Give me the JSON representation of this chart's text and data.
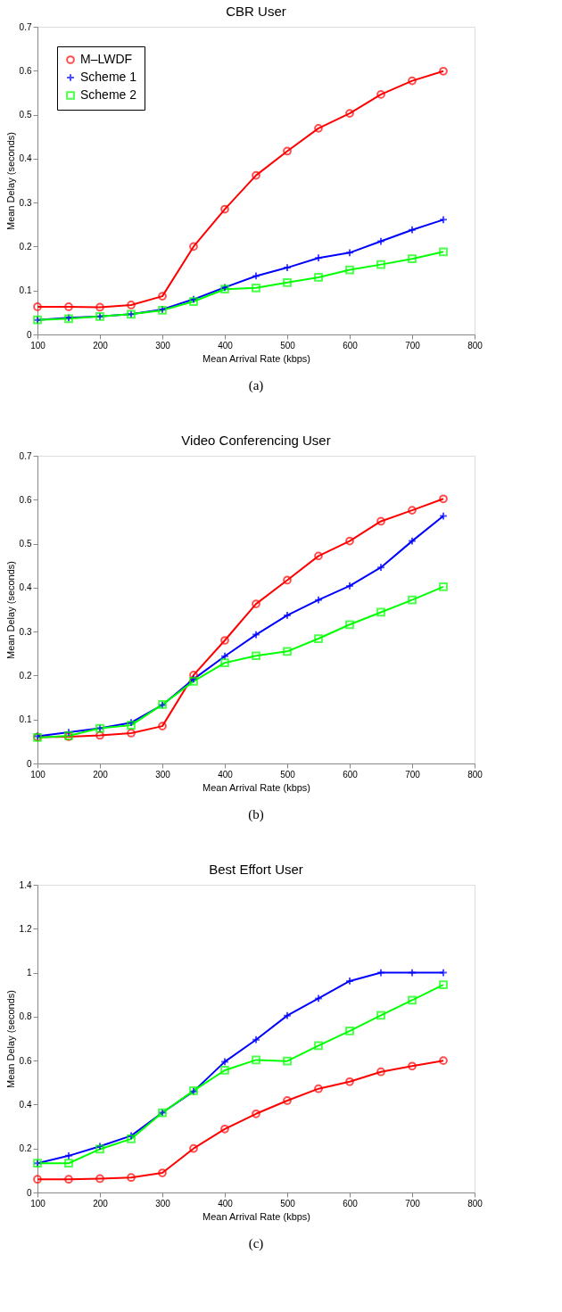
{
  "chart_data": [
    {
      "type": "line",
      "title": "CBR User",
      "xlabel": "Mean Arrival Rate (kbps)",
      "ylabel": "Mean Delay (seconds)",
      "annotations": [
        "(a)"
      ],
      "x": [
        100,
        150,
        200,
        250,
        300,
        350,
        400,
        450,
        500,
        550,
        600,
        650,
        700,
        750
      ],
      "xlim": [
        100,
        800
      ],
      "xticks": [
        100,
        200,
        300,
        400,
        500,
        600,
        700,
        800
      ],
      "ylim": [
        0,
        0.7
      ],
      "yticks": [
        0,
        0.1,
        0.2,
        0.3,
        0.4,
        0.5,
        0.6,
        0.7
      ],
      "grid": false,
      "legend": "top left",
      "line_style": "solid",
      "series": [
        {
          "name": "M–LWDF",
          "color": "#ff0000",
          "marker": "circle",
          "values": [
            0.063,
            0.063,
            0.062,
            0.067,
            0.087,
            0.2,
            0.285,
            0.362,
            0.417,
            0.469,
            0.503,
            0.546,
            0.577,
            0.599
          ]
        },
        {
          "name": "Scheme 1",
          "color": "#0000ff",
          "marker": "cross",
          "values": [
            0.033,
            0.038,
            0.041,
            0.046,
            0.057,
            0.08,
            0.107,
            0.133,
            0.152,
            0.174,
            0.186,
            0.212,
            0.238,
            0.261
          ]
        },
        {
          "name": "Scheme 2",
          "color": "#00ff00",
          "marker": "square",
          "values": [
            0.033,
            0.036,
            0.041,
            0.046,
            0.055,
            0.075,
            0.103,
            0.106,
            0.118,
            0.13,
            0.147,
            0.159,
            0.172,
            0.188
          ]
        }
      ]
    },
    {
      "type": "line",
      "title": "Video Conferencing User",
      "xlabel": "Mean Arrival Rate (kbps)",
      "ylabel": "Mean Delay (seconds)",
      "annotations": [
        "(b)"
      ],
      "x": [
        100,
        150,
        200,
        250,
        300,
        350,
        400,
        450,
        500,
        550,
        600,
        650,
        700,
        750
      ],
      "xlim": [
        100,
        800
      ],
      "xticks": [
        100,
        200,
        300,
        400,
        500,
        600,
        700,
        800
      ],
      "ylim": [
        0,
        0.7
      ],
      "yticks": [
        0,
        0.1,
        0.2,
        0.3,
        0.4,
        0.5,
        0.6,
        0.7
      ],
      "grid": false,
      "legend": "top left",
      "line_style": "solid",
      "series": [
        {
          "name": "M–LWDF",
          "color": "#ff0000",
          "marker": "circle",
          "values": [
            0.06,
            0.061,
            0.064,
            0.069,
            0.085,
            0.201,
            0.28,
            0.363,
            0.417,
            0.472,
            0.506,
            0.551,
            0.576,
            0.602
          ]
        },
        {
          "name": "Scheme 1",
          "color": "#0000ff",
          "marker": "cross",
          "values": [
            0.062,
            0.071,
            0.08,
            0.093,
            0.133,
            0.192,
            0.244,
            0.293,
            0.337,
            0.372,
            0.404,
            0.446,
            0.506,
            0.563
          ]
        },
        {
          "name": "Scheme 2",
          "color": "#00ff00",
          "marker": "square",
          "values": [
            0.059,
            0.063,
            0.08,
            0.087,
            0.134,
            0.187,
            0.229,
            0.245,
            0.255,
            0.284,
            0.316,
            0.344,
            0.372,
            0.402
          ]
        }
      ]
    },
    {
      "type": "line",
      "title": "Best Effort User",
      "xlabel": "Mean Arrival Rate (kbps)",
      "ylabel": "Mean Delay (seconds)",
      "annotations": [
        "(c)"
      ],
      "x": [
        100,
        150,
        200,
        250,
        300,
        350,
        400,
        450,
        500,
        550,
        600,
        650,
        700,
        750
      ],
      "xlim": [
        100,
        800
      ],
      "xticks": [
        100,
        200,
        300,
        400,
        500,
        600,
        700,
        800
      ],
      "ylim": [
        0,
        1.4
      ],
      "yticks": [
        0,
        0.2,
        0.4,
        0.6,
        0.8,
        1,
        1.2,
        1.4
      ],
      "grid": false,
      "legend": "top left",
      "line_style": "solid",
      "series": [
        {
          "name": "M–LWDF",
          "color": "#ff0000",
          "marker": "circle",
          "values": [
            0.06,
            0.06,
            0.063,
            0.068,
            0.089,
            0.2,
            0.289,
            0.358,
            0.418,
            0.472,
            0.504,
            0.549,
            0.575,
            0.6
          ]
        },
        {
          "name": "Scheme 1",
          "color": "#0000ff",
          "marker": "cross",
          "values": [
            0.133,
            0.167,
            0.21,
            0.258,
            0.363,
            0.46,
            0.595,
            0.695,
            0.805,
            0.883,
            0.962,
            1.0,
            1.0,
            1.0
          ]
        },
        {
          "name": "Scheme 2",
          "color": "#00ff00",
          "marker": "square",
          "values": [
            0.133,
            0.133,
            0.197,
            0.244,
            0.363,
            0.463,
            0.556,
            0.603,
            0.598,
            0.668,
            0.735,
            0.806,
            0.875,
            0.945
          ]
        }
      ]
    }
  ]
}
